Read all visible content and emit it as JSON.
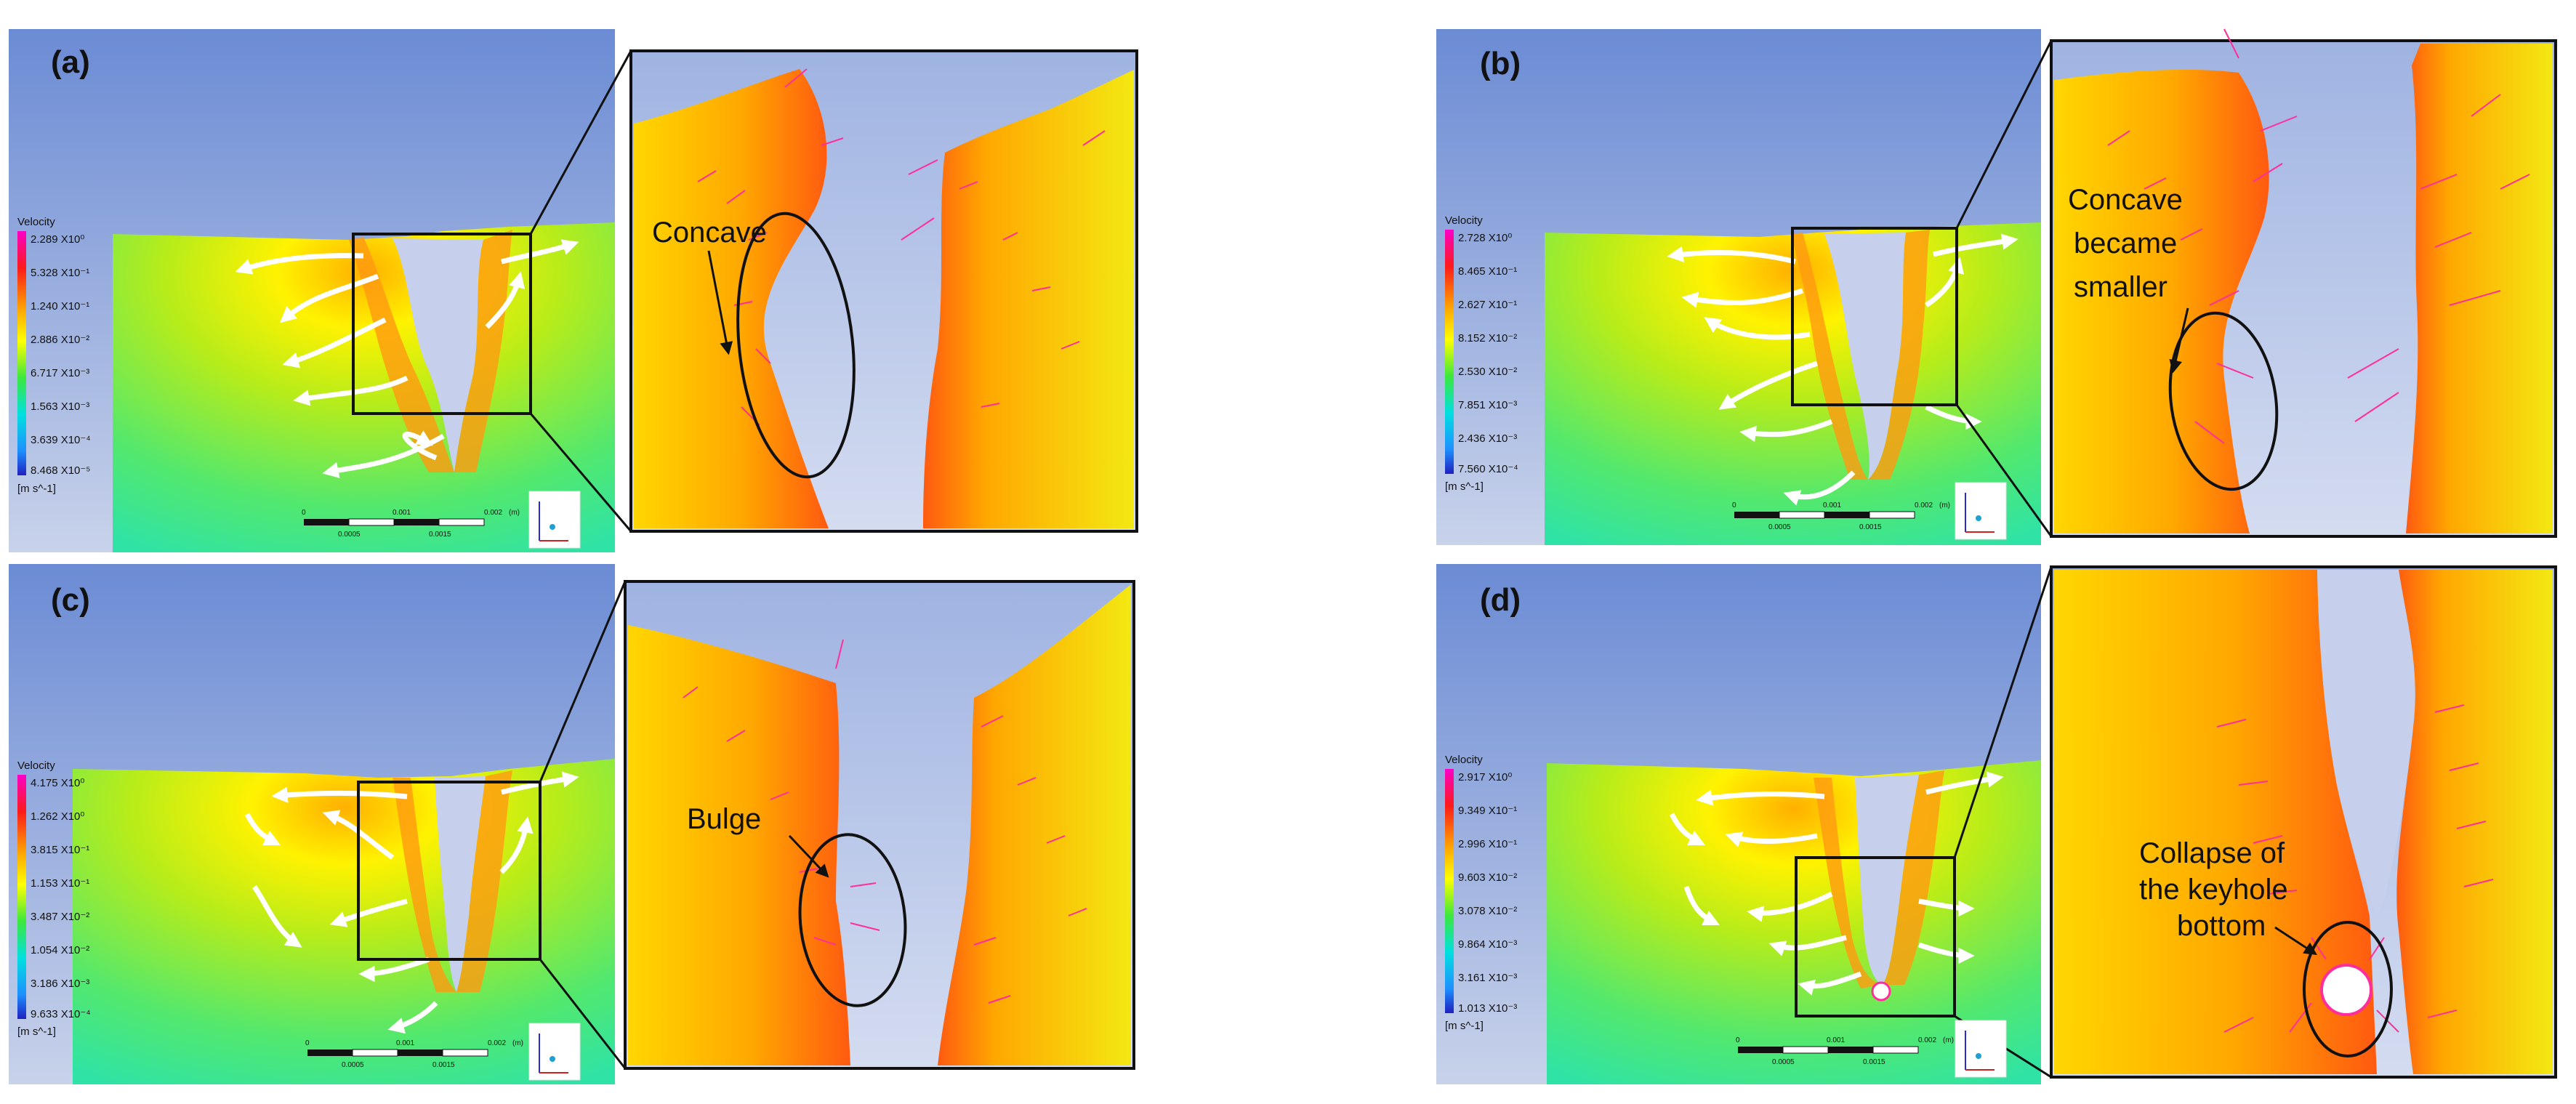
{
  "panels": [
    {
      "id": "a",
      "label": "(a)",
      "legend_title": "Velocity",
      "legend_unit": "[m s^-1]",
      "legend_ticks": [
        "2.289 X10⁰",
        "5.328 X10⁻¹",
        "1.240 X10⁻¹",
        "2.886 X10⁻²",
        "6.717 X10⁻³",
        "1.563 X10⁻³",
        "3.639 X10⁻⁴",
        "8.468 X10⁻⁵"
      ],
      "annotation": [
        "Concave"
      ],
      "scale_top": [
        "0",
        "0.001",
        "0.002",
        "(m)"
      ],
      "scale_bottom": [
        "0.0005",
        "0.0015"
      ]
    },
    {
      "id": "b",
      "label": "(b)",
      "legend_title": "Velocity",
      "legend_unit": "[m s^-1]",
      "legend_ticks": [
        "2.728 X10⁰",
        "8.465 X10⁻¹",
        "2.627 X10⁻¹",
        "8.152 X10⁻²",
        "2.530 X10⁻²",
        "7.851 X10⁻³",
        "2.436 X10⁻³",
        "7.560 X10⁻⁴"
      ],
      "annotation": [
        "Concave",
        "became",
        "smaller"
      ],
      "scale_top": [
        "0",
        "0.001",
        "0.002",
        "(m)"
      ],
      "scale_bottom": [
        "0.0005",
        "0.0015"
      ]
    },
    {
      "id": "c",
      "label": "(c)",
      "legend_title": "Velocity",
      "legend_unit": "[m s^-1]",
      "legend_ticks": [
        "4.175 X10⁰",
        "1.262 X10⁰",
        "3.815 X10⁻¹",
        "1.153 X10⁻¹",
        "3.487 X10⁻²",
        "1.054 X10⁻²",
        "3.186 X10⁻³",
        "9.633 X10⁻⁴"
      ],
      "annotation": [
        "Bulge"
      ],
      "scale_top": [
        "0",
        "0.001",
        "0.002",
        "(m)"
      ],
      "scale_bottom": [
        "0.0005",
        "0.0015"
      ]
    },
    {
      "id": "d",
      "label": "(d)",
      "legend_title": "Velocity",
      "legend_unit": "[m s^-1]",
      "legend_ticks": [
        "2.917 X10⁰",
        "9.349 X10⁻¹",
        "2.996 X10⁻¹",
        "9.603 X10⁻²",
        "3.078 X10⁻²",
        "9.864 X10⁻³",
        "3.161 X10⁻³",
        "1.013 X10⁻³"
      ],
      "annotation": [
        "Collapse of",
        "the keyhole",
        "bottom"
      ],
      "scale_top": [
        "0",
        "0.001",
        "0.002",
        "(m)"
      ],
      "scale_bottom": [
        "0.0005",
        "0.0015"
      ]
    }
  ],
  "colors": {
    "sky_top": "#6f8fd6",
    "sky_bottom": "#c3cee8",
    "melt_hot": "#ff8a10",
    "melt_warm": "#ffd400",
    "metal_mid": "#b6ec1a",
    "metal_cool": "#41e87e",
    "vector": "#ff2e9a",
    "flow_arrow": "#ffffff"
  }
}
